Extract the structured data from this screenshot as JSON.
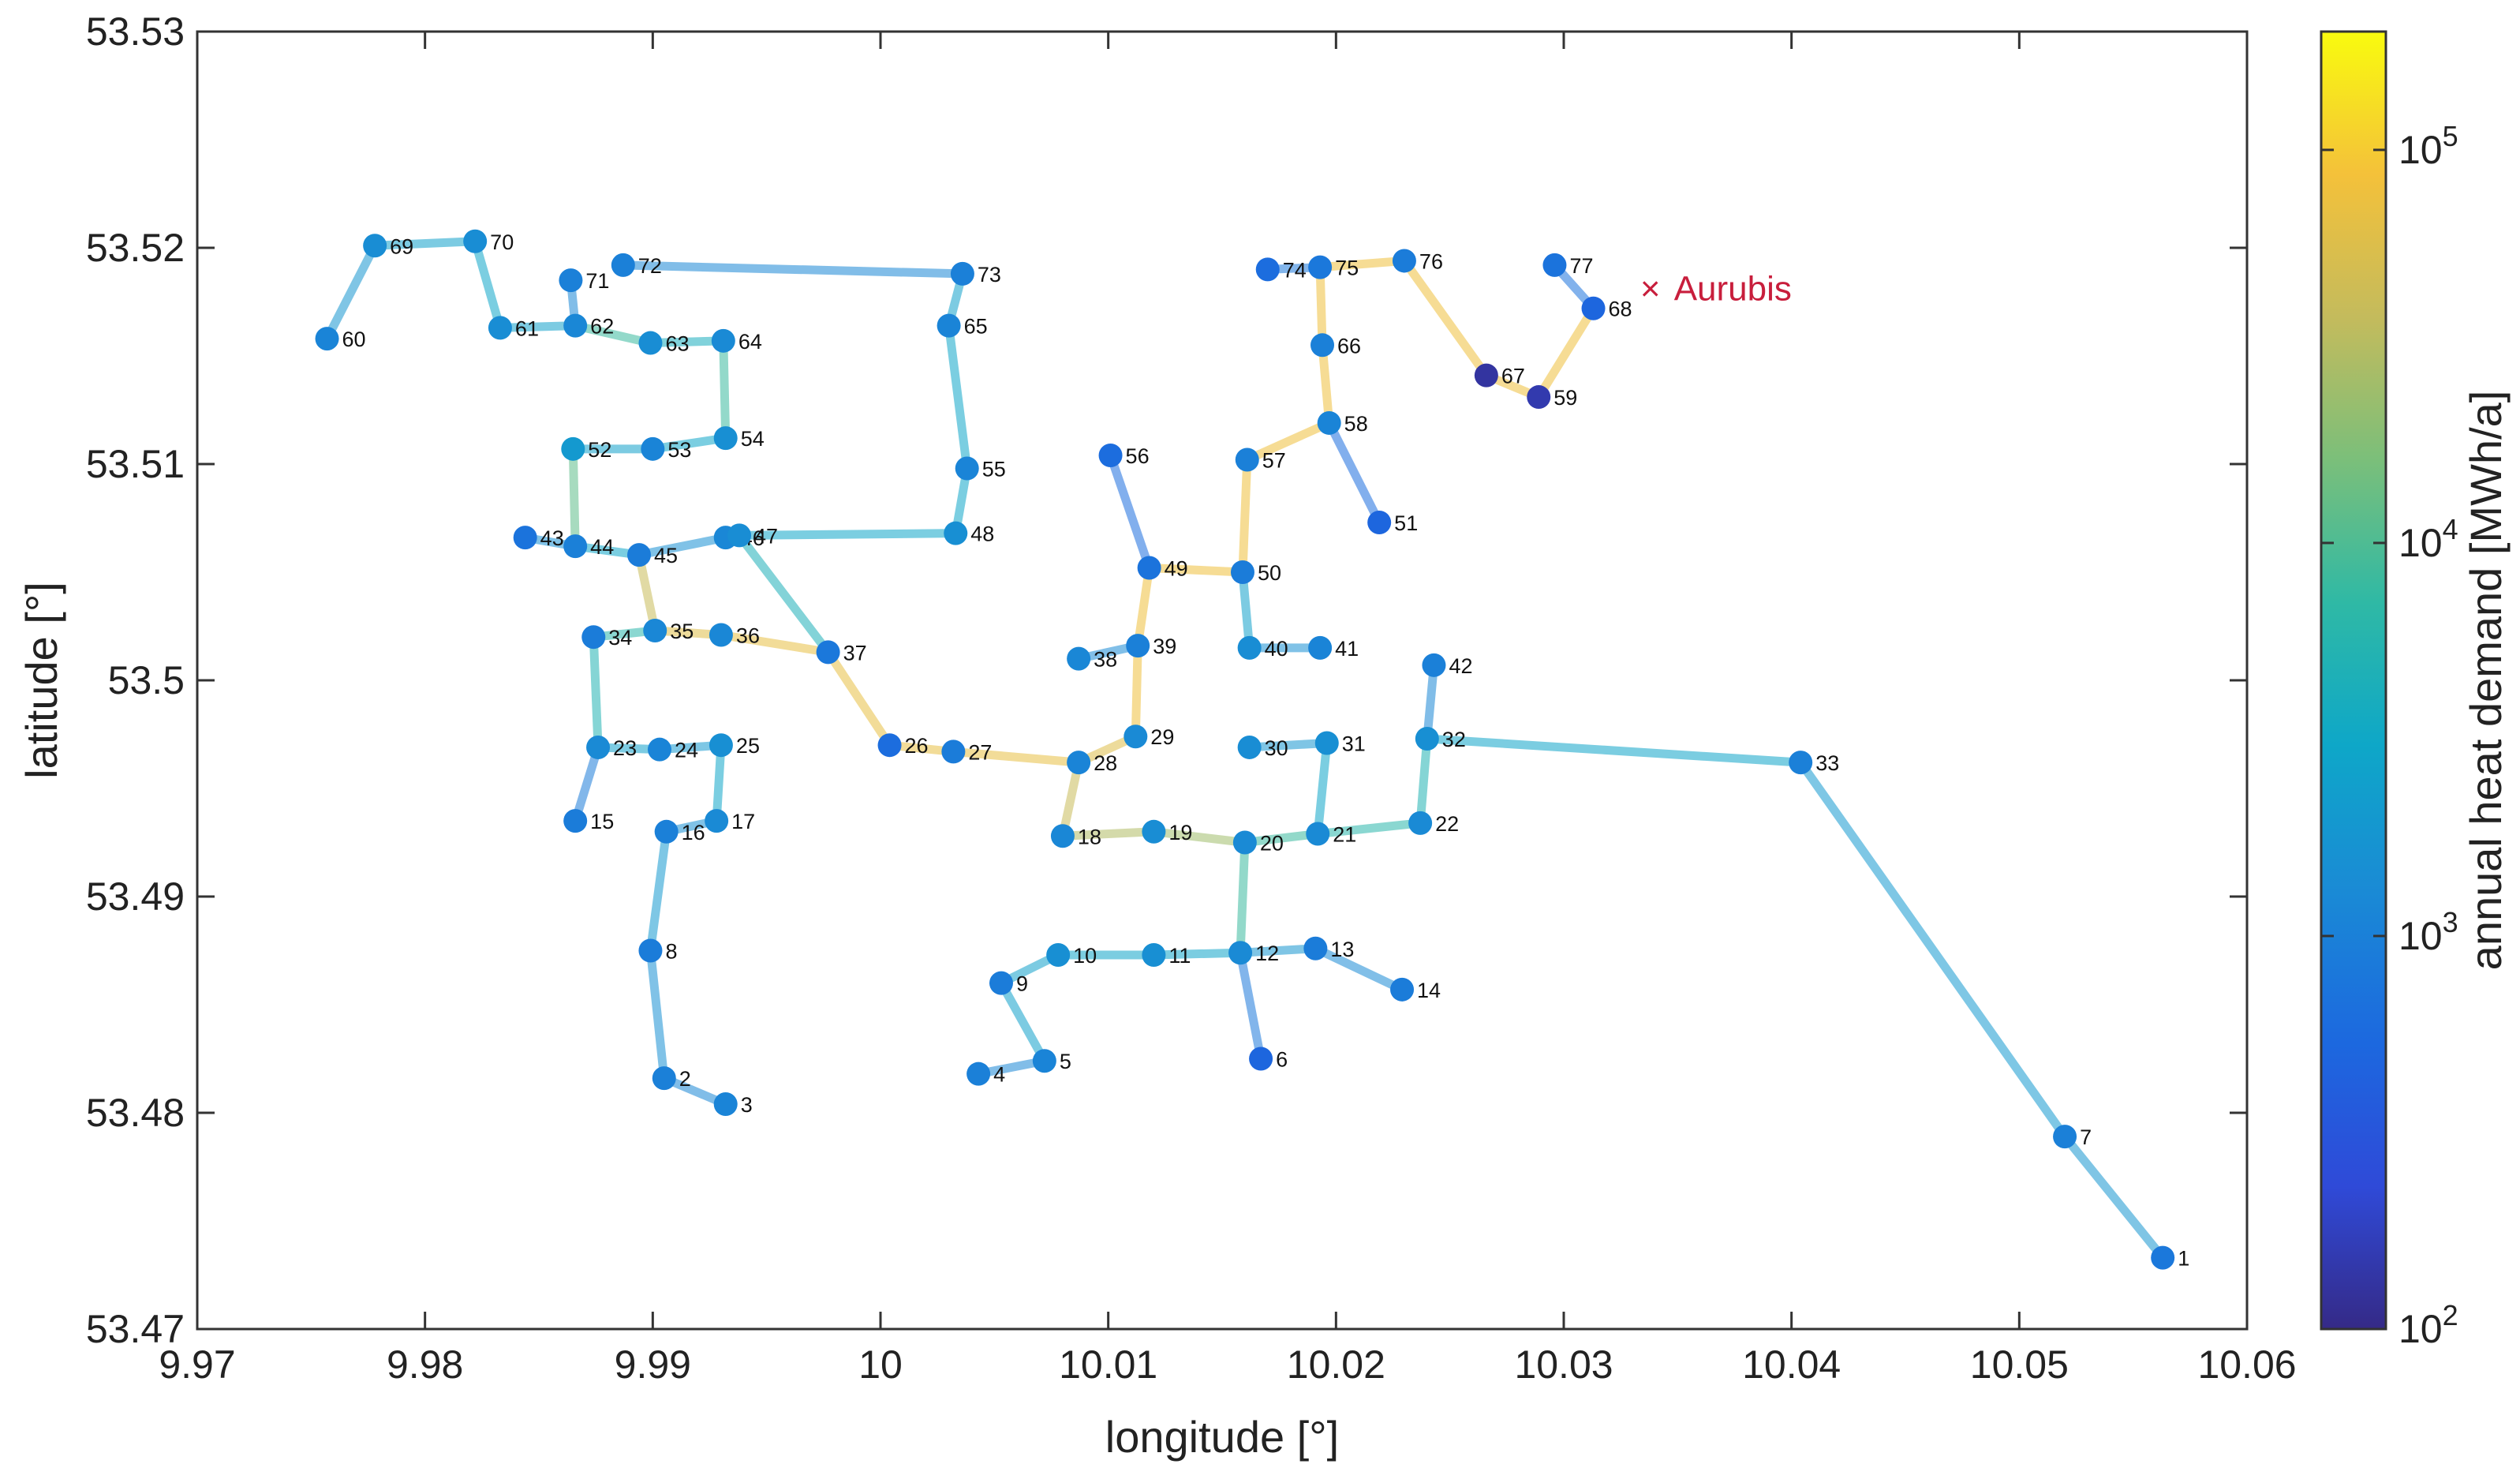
{
  "chart_data": {
    "type": "scatter",
    "title": "",
    "xlabel": "longitude [°]",
    "ylabel": "latitude [°]",
    "xlim": [
      9.97,
      10.06
    ],
    "ylim": [
      53.47,
      53.53
    ],
    "xticks": [
      9.97,
      9.98,
      9.99,
      10.0,
      10.01,
      10.02,
      10.03,
      10.04,
      10.05,
      10.06
    ],
    "xtick_labels": [
      "9.97",
      "9.98",
      "9.99",
      "10",
      "10.01",
      "10.02",
      "10.03",
      "10.04",
      "10.05",
      "10.06"
    ],
    "yticks": [
      53.47,
      53.48,
      53.49,
      53.5,
      53.51,
      53.52,
      53.53
    ],
    "ytick_labels": [
      "53.47",
      "53.48",
      "53.49",
      "53.5",
      "53.51",
      "53.52",
      "53.53"
    ],
    "colorbar": {
      "label": "annual heat demand [MWh/a]",
      "scale": "log",
      "range": [
        100,
        200000
      ],
      "tick_values": [
        100,
        1000,
        10000,
        100000
      ],
      "tick_labels": [
        {
          "base": "10",
          "exp": "2"
        },
        {
          "base": "10",
          "exp": "3"
        },
        {
          "base": "10",
          "exp": "4"
        },
        {
          "base": "10",
          "exp": "5"
        }
      ]
    },
    "annotation": {
      "label": "Aurubis",
      "marker": "×",
      "lon": 10.0338,
      "lat": 53.5181,
      "color": "#c81e3c"
    },
    "nodes": [
      {
        "id": "1",
        "lon": 10.0563,
        "lat": 53.4733,
        "demand": 800
      },
      {
        "id": "2",
        "lon": 9.9905,
        "lat": 53.4816,
        "demand": 1000
      },
      {
        "id": "3",
        "lon": 9.9932,
        "lat": 53.4804,
        "demand": 1100
      },
      {
        "id": "4",
        "lon": 10.0043,
        "lat": 53.4818,
        "demand": 1000
      },
      {
        "id": "5",
        "lon": 10.0072,
        "lat": 53.4824,
        "demand": 1100
      },
      {
        "id": "6",
        "lon": 10.0167,
        "lat": 53.4825,
        "demand": 500
      },
      {
        "id": "7",
        "lon": 10.052,
        "lat": 53.4789,
        "demand": 1000
      },
      {
        "id": "8",
        "lon": 9.9899,
        "lat": 53.4875,
        "demand": 900
      },
      {
        "id": "9",
        "lon": 10.0053,
        "lat": 53.486,
        "demand": 900
      },
      {
        "id": "10",
        "lon": 10.0078,
        "lat": 53.4873,
        "demand": 1500
      },
      {
        "id": "11",
        "lon": 10.012,
        "lat": 53.4873,
        "demand": 1500
      },
      {
        "id": "12",
        "lon": 10.0158,
        "lat": 53.4874,
        "demand": 1300
      },
      {
        "id": "13",
        "lon": 10.0191,
        "lat": 53.4876,
        "demand": 900
      },
      {
        "id": "14",
        "lon": 10.0229,
        "lat": 53.4857,
        "demand": 900
      },
      {
        "id": "15",
        "lon": 9.9866,
        "lat": 53.4935,
        "demand": 900
      },
      {
        "id": "16",
        "lon": 9.9906,
        "lat": 53.493,
        "demand": 1000
      },
      {
        "id": "17",
        "lon": 9.9928,
        "lat": 53.4935,
        "demand": 1300
      },
      {
        "id": "18",
        "lon": 10.008,
        "lat": 53.4928,
        "demand": 1200
      },
      {
        "id": "19",
        "lon": 10.012,
        "lat": 53.493,
        "demand": 1400
      },
      {
        "id": "20",
        "lon": 10.016,
        "lat": 53.4925,
        "demand": 1300
      },
      {
        "id": "21",
        "lon": 10.0192,
        "lat": 53.4929,
        "demand": 1300
      },
      {
        "id": "22",
        "lon": 10.0237,
        "lat": 53.4934,
        "demand": 1300
      },
      {
        "id": "23",
        "lon": 9.9876,
        "lat": 53.4969,
        "demand": 1300
      },
      {
        "id": "24",
        "lon": 9.9903,
        "lat": 53.4968,
        "demand": 1100
      },
      {
        "id": "25",
        "lon": 9.993,
        "lat": 53.497,
        "demand": 1500
      },
      {
        "id": "26",
        "lon": 10.0004,
        "lat": 53.497,
        "demand": 600
      },
      {
        "id": "27",
        "lon": 10.0032,
        "lat": 53.4967,
        "demand": 900
      },
      {
        "id": "28",
        "lon": 10.0087,
        "lat": 53.4962,
        "demand": 1100
      },
      {
        "id": "29",
        "lon": 10.0112,
        "lat": 53.4974,
        "demand": 1300
      },
      {
        "id": "30",
        "lon": 10.0162,
        "lat": 53.4969,
        "demand": 1400
      },
      {
        "id": "31",
        "lon": 10.0196,
        "lat": 53.4971,
        "demand": 1500
      },
      {
        "id": "32",
        "lon": 10.024,
        "lat": 53.4973,
        "demand": 1500
      },
      {
        "id": "33",
        "lon": 10.0404,
        "lat": 53.4962,
        "demand": 1000
      },
      {
        "id": "34",
        "lon": 9.9874,
        "lat": 53.502,
        "demand": 900
      },
      {
        "id": "35",
        "lon": 9.9901,
        "lat": 53.5023,
        "demand": 1200
      },
      {
        "id": "36",
        "lon": 9.993,
        "lat": 53.5021,
        "demand": 1200
      },
      {
        "id": "37",
        "lon": 9.9977,
        "lat": 53.5013,
        "demand": 800
      },
      {
        "id": "38",
        "lon": 10.0087,
        "lat": 53.501,
        "demand": 1200
      },
      {
        "id": "39",
        "lon": 10.0113,
        "lat": 53.5016,
        "demand": 1000
      },
      {
        "id": "40",
        "lon": 10.0162,
        "lat": 53.5015,
        "demand": 1400
      },
      {
        "id": "41",
        "lon": 10.0193,
        "lat": 53.5015,
        "demand": 1100
      },
      {
        "id": "42",
        "lon": 10.0243,
        "lat": 53.5007,
        "demand": 1000
      },
      {
        "id": "43",
        "lon": 9.9844,
        "lat": 53.5066,
        "demand": 700
      },
      {
        "id": "44",
        "lon": 9.9866,
        "lat": 53.5062,
        "demand": 1000
      },
      {
        "id": "45",
        "lon": 9.9894,
        "lat": 53.5058,
        "demand": 900
      },
      {
        "id": "46",
        "lon": 9.9932,
        "lat": 53.5066,
        "demand": 1200
      },
      {
        "id": "47",
        "lon": 9.9938,
        "lat": 53.5067,
        "demand": 1400
      },
      {
        "id": "48",
        "lon": 10.0033,
        "lat": 53.5068,
        "demand": 1500
      },
      {
        "id": "49",
        "lon": 10.0118,
        "lat": 53.5052,
        "demand": 700
      },
      {
        "id": "50",
        "lon": 10.0159,
        "lat": 53.505,
        "demand": 900
      },
      {
        "id": "51",
        "lon": 10.0219,
        "lat": 53.5073,
        "demand": 500
      },
      {
        "id": "52",
        "lon": 9.9865,
        "lat": 53.5107,
        "demand": 2000
      },
      {
        "id": "53",
        "lon": 9.99,
        "lat": 53.5107,
        "demand": 1100
      },
      {
        "id": "54",
        "lon": 9.9932,
        "lat": 53.5112,
        "demand": 1500
      },
      {
        "id": "55",
        "lon": 10.0038,
        "lat": 53.5098,
        "demand": 1100
      },
      {
        "id": "56",
        "lon": 10.0101,
        "lat": 53.5104,
        "demand": 600
      },
      {
        "id": "57",
        "lon": 10.0161,
        "lat": 53.5102,
        "demand": 1000
      },
      {
        "id": "58",
        "lon": 10.0197,
        "lat": 53.5119,
        "demand": 1100
      },
      {
        "id": "59",
        "lon": 10.0289,
        "lat": 53.5131,
        "demand": 150
      },
      {
        "id": "60",
        "lon": 9.9757,
        "lat": 53.5158,
        "demand": 1100
      },
      {
        "id": "61",
        "lon": 9.9833,
        "lat": 53.5163,
        "demand": 1400
      },
      {
        "id": "62",
        "lon": 9.9866,
        "lat": 53.5164,
        "demand": 1200
      },
      {
        "id": "63",
        "lon": 9.9899,
        "lat": 53.5156,
        "demand": 1400
      },
      {
        "id": "64",
        "lon": 9.9931,
        "lat": 53.5157,
        "demand": 1300
      },
      {
        "id": "65",
        "lon": 10.003,
        "lat": 53.5164,
        "demand": 1100
      },
      {
        "id": "66",
        "lon": 10.0194,
        "lat": 53.5155,
        "demand": 1000
      },
      {
        "id": "67",
        "lon": 10.0266,
        "lat": 53.5141,
        "demand": 130
      },
      {
        "id": "68",
        "lon": 10.0313,
        "lat": 53.5172,
        "demand": 500
      },
      {
        "id": "69",
        "lon": 9.9778,
        "lat": 53.5201,
        "demand": 1400
      },
      {
        "id": "70",
        "lon": 9.9822,
        "lat": 53.5203,
        "demand": 1400
      },
      {
        "id": "71",
        "lon": 9.9864,
        "lat": 53.5185,
        "demand": 1000
      },
      {
        "id": "72",
        "lon": 9.9887,
        "lat": 53.5192,
        "demand": 1000
      },
      {
        "id": "73",
        "lon": 10.0036,
        "lat": 53.5188,
        "demand": 1000
      },
      {
        "id": "74",
        "lon": 10.017,
        "lat": 53.519,
        "demand": 600
      },
      {
        "id": "75",
        "lon": 10.0193,
        "lat": 53.5191,
        "demand": 800
      },
      {
        "id": "76",
        "lon": 10.023,
        "lat": 53.5194,
        "demand": 900
      },
      {
        "id": "77",
        "lon": 10.0296,
        "lat": 53.5192,
        "demand": 700
      }
    ],
    "edges": [
      {
        "from": "1",
        "to": "7",
        "demand": 1800
      },
      {
        "from": "7",
        "to": "33",
        "demand": 2000
      },
      {
        "from": "33",
        "to": "32",
        "demand": 2800
      },
      {
        "from": "2",
        "to": "3",
        "demand": 1200
      },
      {
        "from": "2",
        "to": "8",
        "demand": 1500
      },
      {
        "from": "8",
        "to": "16",
        "demand": 2000
      },
      {
        "from": "16",
        "to": "17",
        "demand": 1500
      },
      {
        "from": "17",
        "to": "25",
        "demand": 3000
      },
      {
        "from": "25",
        "to": "24",
        "demand": 2000
      },
      {
        "from": "24",
        "to": "23",
        "demand": 2500
      },
      {
        "from": "23",
        "to": "15",
        "demand": 900
      },
      {
        "from": "23",
        "to": "34",
        "demand": 5000
      },
      {
        "from": "34",
        "to": "35",
        "demand": 6000
      },
      {
        "from": "35",
        "to": "36",
        "demand": 60000
      },
      {
        "from": "36",
        "to": "37",
        "demand": 70000
      },
      {
        "from": "35",
        "to": "45",
        "demand": 40000
      },
      {
        "from": "45",
        "to": "44",
        "demand": 3000
      },
      {
        "from": "44",
        "to": "43",
        "demand": 1500
      },
      {
        "from": "45",
        "to": "46",
        "demand": 1500
      },
      {
        "from": "44",
        "to": "52",
        "demand": 12000
      },
      {
        "from": "52",
        "to": "53",
        "demand": 2500
      },
      {
        "from": "53",
        "to": "54",
        "demand": 3000
      },
      {
        "from": "54",
        "to": "64",
        "demand": 8000
      },
      {
        "from": "64",
        "to": "63",
        "demand": 4000
      },
      {
        "from": "63",
        "to": "62",
        "demand": 8000
      },
      {
        "from": "62",
        "to": "71",
        "demand": 1200
      },
      {
        "from": "62",
        "to": "61",
        "demand": 2500
      },
      {
        "from": "61",
        "to": "70",
        "demand": 3000
      },
      {
        "from": "70",
        "to": "69",
        "demand": 2500
      },
      {
        "from": "69",
        "to": "60",
        "demand": 1800
      },
      {
        "from": "37",
        "to": "47",
        "demand": 4500
      },
      {
        "from": "47",
        "to": "48",
        "demand": 3000
      },
      {
        "from": "48",
        "to": "55",
        "demand": 3000
      },
      {
        "from": "55",
        "to": "65",
        "demand": 3000
      },
      {
        "from": "65",
        "to": "73",
        "demand": 2500
      },
      {
        "from": "73",
        "to": "72",
        "demand": 1200
      },
      {
        "from": "37",
        "to": "26",
        "demand": 70000
      },
      {
        "from": "26",
        "to": "27",
        "demand": 70000
      },
      {
        "from": "27",
        "to": "28",
        "demand": 70000
      },
      {
        "from": "28",
        "to": "29",
        "demand": 60000
      },
      {
        "from": "29",
        "to": "39",
        "demand": 80000
      },
      {
        "from": "39",
        "to": "38",
        "demand": 1300
      },
      {
        "from": "39",
        "to": "49",
        "demand": 80000
      },
      {
        "from": "49",
        "to": "56",
        "demand": 600
      },
      {
        "from": "49",
        "to": "50",
        "demand": 80000
      },
      {
        "from": "50",
        "to": "40",
        "demand": 2500
      },
      {
        "from": "40",
        "to": "41",
        "demand": 1500
      },
      {
        "from": "50",
        "to": "57",
        "demand": 80000
      },
      {
        "from": "57",
        "to": "58",
        "demand": 80000
      },
      {
        "from": "58",
        "to": "51",
        "demand": 600
      },
      {
        "from": "58",
        "to": "66",
        "demand": 80000
      },
      {
        "from": "66",
        "to": "75",
        "demand": 80000
      },
      {
        "from": "75",
        "to": "74",
        "demand": 800
      },
      {
        "from": "75",
        "to": "76",
        "demand": 80000
      },
      {
        "from": "76",
        "to": "67",
        "demand": 80000
      },
      {
        "from": "67",
        "to": "59",
        "demand": 80000
      },
      {
        "from": "59",
        "to": "68",
        "demand": 80000
      },
      {
        "from": "68",
        "to": "77",
        "demand": 700
      },
      {
        "from": "28",
        "to": "18",
        "demand": 40000
      },
      {
        "from": "18",
        "to": "19",
        "demand": 30000
      },
      {
        "from": "19",
        "to": "20",
        "demand": 25000
      },
      {
        "from": "20",
        "to": "12",
        "demand": 8000
      },
      {
        "from": "12",
        "to": "6",
        "demand": 800
      },
      {
        "from": "12",
        "to": "13",
        "demand": 1800
      },
      {
        "from": "13",
        "to": "14",
        "demand": 1300
      },
      {
        "from": "12",
        "to": "11",
        "demand": 2800
      },
      {
        "from": "11",
        "to": "10",
        "demand": 2800
      },
      {
        "from": "10",
        "to": "9",
        "demand": 2500
      },
      {
        "from": "9",
        "to": "5",
        "demand": 2500
      },
      {
        "from": "5",
        "to": "4",
        "demand": 1200
      },
      {
        "from": "20",
        "to": "21",
        "demand": 8000
      },
      {
        "from": "21",
        "to": "31",
        "demand": 3000
      },
      {
        "from": "31",
        "to": "30",
        "demand": 1800
      },
      {
        "from": "21",
        "to": "22",
        "demand": 6000
      },
      {
        "from": "22",
        "to": "32",
        "demand": 5000
      },
      {
        "from": "32",
        "to": "42",
        "demand": 1200
      }
    ]
  }
}
